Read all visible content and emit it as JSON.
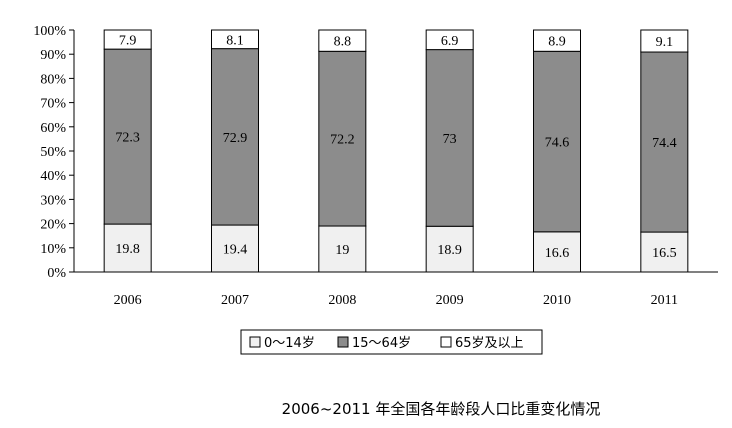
{
  "chart_data": {
    "type": "bar",
    "stacked": true,
    "categories": [
      "2006",
      "2007",
      "2008",
      "2009",
      "2010",
      "2011"
    ],
    "series": [
      {
        "name": "0～14岁",
        "values": [
          19.8,
          19.4,
          19,
          18.9,
          16.6,
          16.5
        ],
        "color": "#f0f0f0"
      },
      {
        "name": "15～64岁",
        "values": [
          72.3,
          72.9,
          72.2,
          73,
          74.6,
          74.4
        ],
        "color": "#8c8c8c"
      },
      {
        "name": "65岁及以上",
        "values": [
          7.9,
          8.1,
          8.8,
          6.9,
          8.9,
          9.1
        ],
        "color": "#ffffff"
      }
    ],
    "ylim": [
      0,
      100
    ],
    "yticks": [
      "0%",
      "10%",
      "20%",
      "30%",
      "40%",
      "50%",
      "60%",
      "70%",
      "80%",
      "90%",
      "100%"
    ],
    "legend_position": "bottom",
    "title": "2006~2011 年全国各年龄段人口比重变化情况"
  }
}
